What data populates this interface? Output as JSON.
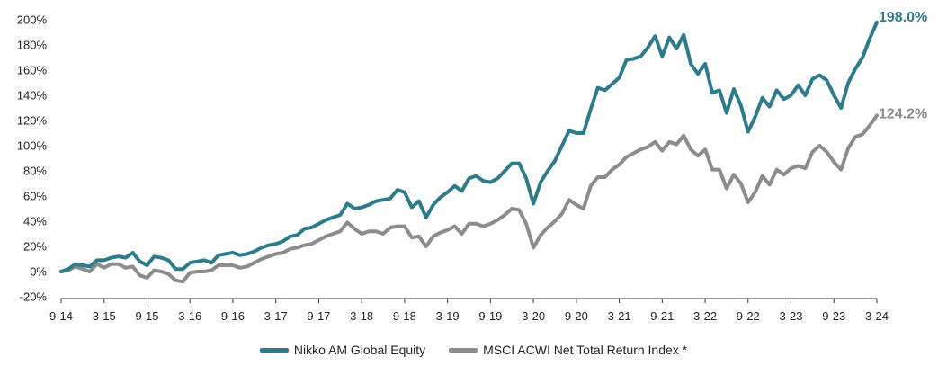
{
  "chart_data": {
    "type": "line",
    "y_ticks": [
      "200%",
      "180%",
      "160%",
      "140%",
      "120%",
      "100%",
      "80%",
      "60%",
      "40%",
      "20%",
      "0%",
      "-20%"
    ],
    "ylim": [
      -20,
      200
    ],
    "x_ticks": [
      "9-14",
      "3-15",
      "9-15",
      "3-16",
      "9-16",
      "3-17",
      "9-17",
      "3-18",
      "9-18",
      "3-19",
      "9-19",
      "3-20",
      "9-20",
      "3-21",
      "9-21",
      "3-22",
      "9-22",
      "3-23",
      "9-23",
      "3-24"
    ],
    "gridlines": false,
    "series": [
      {
        "name": "Nikko AM Global Equity",
        "color": "#2e7b8c",
        "end_label": "198.0%",
        "values": [
          0,
          2,
          6,
          5,
          4,
          9,
          9,
          11,
          12,
          11,
          15,
          8,
          5,
          12,
          11,
          9,
          2,
          2,
          7,
          8,
          9,
          7,
          13,
          14,
          15,
          13,
          14,
          16,
          19,
          21,
          22,
          24,
          28,
          29,
          34,
          35,
          38,
          41,
          43,
          45,
          54,
          50,
          51,
          53,
          56,
          57,
          58,
          65,
          63,
          51,
          56,
          43,
          53,
          59,
          63,
          68,
          64,
          74,
          76,
          72,
          71,
          74,
          80,
          86,
          86,
          74,
          54,
          71,
          80,
          88,
          100,
          112,
          110,
          110,
          129,
          146,
          144,
          149,
          154,
          168,
          169,
          171,
          178,
          187,
          171,
          186,
          177,
          188,
          165,
          157,
          165,
          142,
          144,
          126,
          145,
          132,
          111,
          123,
          138,
          131,
          144,
          137,
          140,
          148,
          140,
          153,
          156,
          152,
          140,
          130,
          150,
          161,
          170,
          185,
          198
        ]
      },
      {
        "name": "MSCI ACWI Net Total Return Index *",
        "color": "#8c8c8c",
        "end_label": "124.2%",
        "values": [
          0,
          1,
          4,
          2,
          0,
          6,
          3,
          6,
          6,
          3,
          4,
          -3,
          -5,
          1,
          0,
          -2,
          -7,
          -8,
          -1,
          0,
          0,
          1,
          5,
          5,
          5,
          3,
          4,
          7,
          10,
          12,
          14,
          15,
          18,
          19,
          21,
          22,
          25,
          28,
          30,
          32,
          39,
          34,
          30,
          32,
          32,
          30,
          35,
          36,
          36,
          27,
          28,
          20,
          28,
          31,
          33,
          36,
          30,
          38,
          38,
          36,
          38,
          41,
          45,
          50,
          49,
          38,
          19,
          29,
          35,
          40,
          46,
          57,
          53,
          50,
          68,
          75,
          75,
          81,
          85,
          91,
          94,
          97,
          99,
          103,
          96,
          103,
          101,
          108,
          97,
          92,
          97,
          81,
          81,
          66,
          77,
          70,
          55,
          63,
          76,
          69,
          81,
          77,
          82,
          84,
          82,
          95,
          100,
          95,
          87,
          81,
          98,
          107,
          109,
          116,
          124
        ]
      }
    ]
  }
}
